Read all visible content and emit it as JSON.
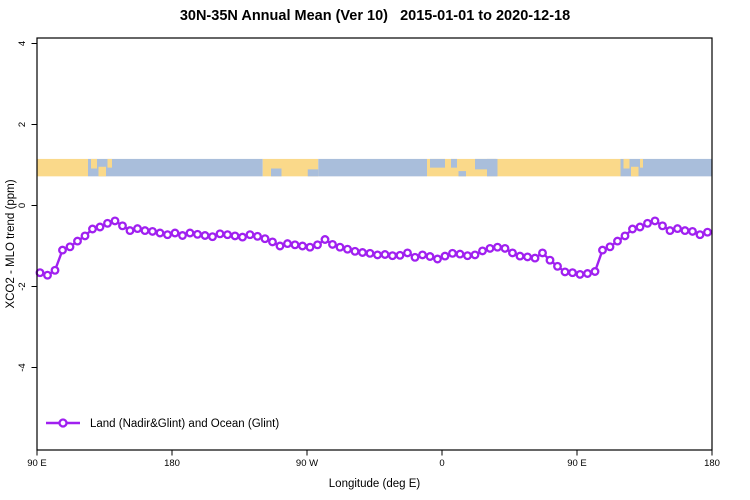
{
  "title": "30N-35N Annual Mean (Ver 10)   2015-01-01 to 2020-12-18",
  "chart_data": {
    "type": "line",
    "title": "30N-35N Annual Mean (Ver 10)   2015-01-01 to 2020-12-18",
    "xlabel": "Longitude (deg E)",
    "ylabel": "XCO2 - MLO trend (ppm)",
    "grid": false,
    "legend_position": "bottom-left",
    "xlim_deg": [
      90,
      540
    ],
    "ylim": [
      -6.05,
      4.15
    ],
    "x_ticks": [
      {
        "deg": 90,
        "label": "90 E"
      },
      {
        "deg": 180,
        "label": "180"
      },
      {
        "deg": 270,
        "label": "90 W"
      },
      {
        "deg": 360,
        "label": "0"
      },
      {
        "deg": 450,
        "label": "90 E"
      },
      {
        "deg": 540,
        "label": "180"
      }
    ],
    "y_ticks": [
      "-4",
      "-2",
      "0",
      "2",
      "4"
    ],
    "series": [
      {
        "name": "Land (Nadir&Glint) and Ocean (Glint)",
        "color": "#A020F0",
        "marker": "open-circle",
        "x_deg": [
          92,
          97,
          102,
          107,
          112,
          117,
          122,
          127,
          132,
          137,
          142,
          147,
          152,
          157,
          162,
          167,
          172,
          177,
          182,
          187,
          192,
          197,
          202,
          207,
          212,
          217,
          222,
          227,
          232,
          237,
          242,
          247,
          252,
          257,
          262,
          267,
          272,
          277,
          282,
          287,
          292,
          297,
          302,
          307,
          312,
          317,
          322,
          327,
          332,
          337,
          342,
          347,
          352,
          357,
          362,
          367,
          372,
          377,
          382,
          387,
          392,
          397,
          402,
          407,
          412,
          417,
          422,
          427,
          432,
          437,
          442,
          447,
          452,
          457,
          462,
          467,
          472,
          477,
          482,
          487,
          492,
          497,
          502,
          507,
          512,
          517,
          522,
          527,
          532,
          537
        ],
        "values": [
          -1.66,
          -1.72,
          -1.6,
          -1.1,
          -1.02,
          -0.88,
          -0.75,
          -0.58,
          -0.53,
          -0.44,
          -0.38,
          -0.5,
          -0.62,
          -0.57,
          -0.62,
          -0.64,
          -0.68,
          -0.72,
          -0.68,
          -0.74,
          -0.68,
          -0.71,
          -0.74,
          -0.77,
          -0.7,
          -0.72,
          -0.75,
          -0.78,
          -0.72,
          -0.76,
          -0.82,
          -0.9,
          -1.0,
          -0.94,
          -0.97,
          -1.0,
          -1.03,
          -0.97,
          -0.84,
          -0.96,
          -1.03,
          -1.08,
          -1.13,
          -1.16,
          -1.18,
          -1.22,
          -1.21,
          -1.24,
          -1.23,
          -1.17,
          -1.28,
          -1.22,
          -1.26,
          -1.32,
          -1.25,
          -1.18,
          -1.2,
          -1.24,
          -1.22,
          -1.12,
          -1.06,
          -1.03,
          -1.06,
          -1.17,
          -1.25,
          -1.27,
          -1.3,
          -1.17,
          -1.35,
          -1.5,
          -1.64,
          -1.66,
          -1.7,
          -1.68,
          -1.63,
          -1.1,
          -1.02,
          -0.88,
          -0.75,
          -0.58,
          -0.53,
          -0.44,
          -0.38,
          -0.5,
          -0.62,
          -0.57,
          -0.62,
          -0.64,
          -0.72,
          -0.66
        ]
      }
    ],
    "map_band": {
      "description": "30N-35N land/ocean strip",
      "land_color": "#FAD98A",
      "ocean_color": "#A9BEDB",
      "y_top": 1.15,
      "y_bottom": 0.72,
      "segments": [
        {
          "from": 90,
          "to": 124,
          "type": "land"
        },
        {
          "from": 124,
          "to": 240.5,
          "type": "ocean"
        },
        {
          "from": 240.5,
          "to": 277.5,
          "type": "land"
        },
        {
          "from": 277.5,
          "to": 350,
          "type": "ocean"
        },
        {
          "from": 350,
          "to": 479,
          "type": "land"
        },
        {
          "from": 479,
          "to": 540,
          "type": "ocean"
        }
      ],
      "patches": [
        {
          "from": 126,
          "to": 130,
          "type": "land",
          "vpos": "top",
          "frac": 0.55
        },
        {
          "from": 131,
          "to": 136,
          "type": "land",
          "vpos": "bottom",
          "frac": 0.55
        },
        {
          "from": 137,
          "to": 140,
          "type": "land",
          "vpos": "top",
          "frac": 0.5
        },
        {
          "from": 246,
          "to": 253,
          "type": "ocean",
          "vpos": "bottom",
          "frac": 0.45
        },
        {
          "from": 270.5,
          "to": 277.5,
          "type": "ocean",
          "vpos": "bottom",
          "frac": 0.4
        },
        {
          "from": 352,
          "to": 362,
          "type": "ocean",
          "vpos": "top",
          "frac": 0.5
        },
        {
          "from": 366,
          "to": 370,
          "type": "ocean",
          "vpos": "top",
          "frac": 0.5
        },
        {
          "from": 371,
          "to": 376,
          "type": "ocean",
          "vpos": "bottom",
          "frac": 0.3
        },
        {
          "from": 382,
          "to": 396,
          "type": "ocean",
          "vpos": "top",
          "frac": 0.6
        },
        {
          "from": 390,
          "to": 397,
          "type": "ocean",
          "vpos": "full",
          "frac": 1
        },
        {
          "from": 481,
          "to": 485,
          "type": "land",
          "vpos": "top",
          "frac": 0.55
        },
        {
          "from": 486,
          "to": 491,
          "type": "land",
          "vpos": "bottom",
          "frac": 0.55
        },
        {
          "from": 492,
          "to": 494,
          "type": "land",
          "vpos": "top",
          "frac": 0.5
        }
      ]
    },
    "legend": {
      "label": "Land (Nadir&Glint) and Ocean (Glint)"
    }
  }
}
